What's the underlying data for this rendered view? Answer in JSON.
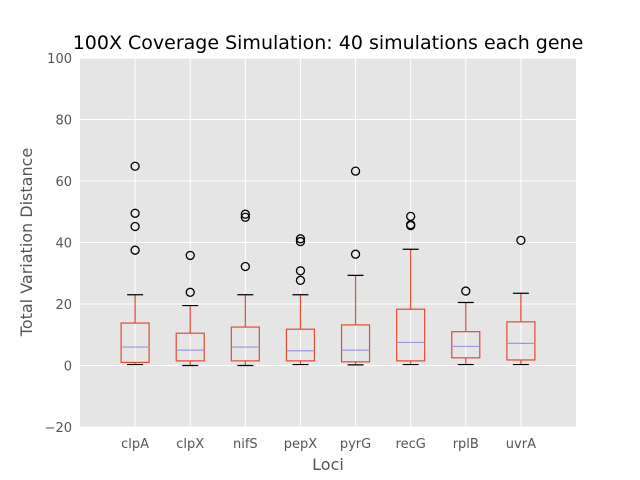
{
  "chart_data": {
    "type": "boxplot",
    "title": "100X Coverage Simulation: 40 simulations each gene",
    "xlabel": "Loci",
    "ylabel": "Total Variation Distance",
    "ylim": [
      -20,
      100
    ],
    "yticks": [
      -20,
      0,
      20,
      40,
      60,
      80,
      100
    ],
    "grid": true,
    "categories": [
      "clpA",
      "clpX",
      "nifS",
      "pepX",
      "pyrG",
      "recG",
      "rplB",
      "uvrA"
    ],
    "boxes": [
      {
        "name": "clpA",
        "whisker_low": 0.3,
        "q1": 1.0,
        "median": 6.0,
        "q3": 13.8,
        "whisker_high": 23.0,
        "outliers": [
          37.5,
          45.2,
          49.5,
          64.8
        ]
      },
      {
        "name": "clpX",
        "whisker_low": 0.0,
        "q1": 1.5,
        "median": 5.0,
        "q3": 10.5,
        "whisker_high": 19.5,
        "outliers": [
          23.8,
          35.8
        ]
      },
      {
        "name": "nifS",
        "whisker_low": 0.0,
        "q1": 1.5,
        "median": 6.0,
        "q3": 12.5,
        "whisker_high": 23.0,
        "outliers": [
          32.2,
          48.2,
          49.2
        ]
      },
      {
        "name": "pepX",
        "whisker_low": 0.3,
        "q1": 1.5,
        "median": 4.8,
        "q3": 11.8,
        "whisker_high": 23.0,
        "outliers": [
          27.7,
          30.8,
          40.3,
          41.2
        ]
      },
      {
        "name": "pyrG",
        "whisker_low": 0.2,
        "q1": 1.2,
        "median": 5.0,
        "q3": 13.2,
        "whisker_high": 29.3,
        "outliers": [
          36.2,
          63.2
        ]
      },
      {
        "name": "recG",
        "whisker_low": 0.3,
        "q1": 1.5,
        "median": 7.5,
        "q3": 18.3,
        "whisker_high": 37.8,
        "outliers": [
          45.5,
          45.8,
          48.5
        ]
      },
      {
        "name": "rplB",
        "whisker_low": 0.3,
        "q1": 2.5,
        "median": 6.2,
        "q3": 11.0,
        "whisker_high": 20.5,
        "outliers": [
          24.2
        ]
      },
      {
        "name": "uvrA",
        "whisker_low": 0.3,
        "q1": 1.8,
        "median": 7.2,
        "q3": 14.2,
        "whisker_high": 23.5,
        "outliers": [
          40.7
        ]
      }
    ],
    "colors": {
      "background": "#e5e5e5",
      "grid": "#ffffff",
      "box": "#e24a33",
      "median": "#8eba42",
      "median_line": "#9999dd",
      "whisker_cap": "#000000",
      "outlier": "#000000",
      "tick_text": "#555555"
    }
  }
}
